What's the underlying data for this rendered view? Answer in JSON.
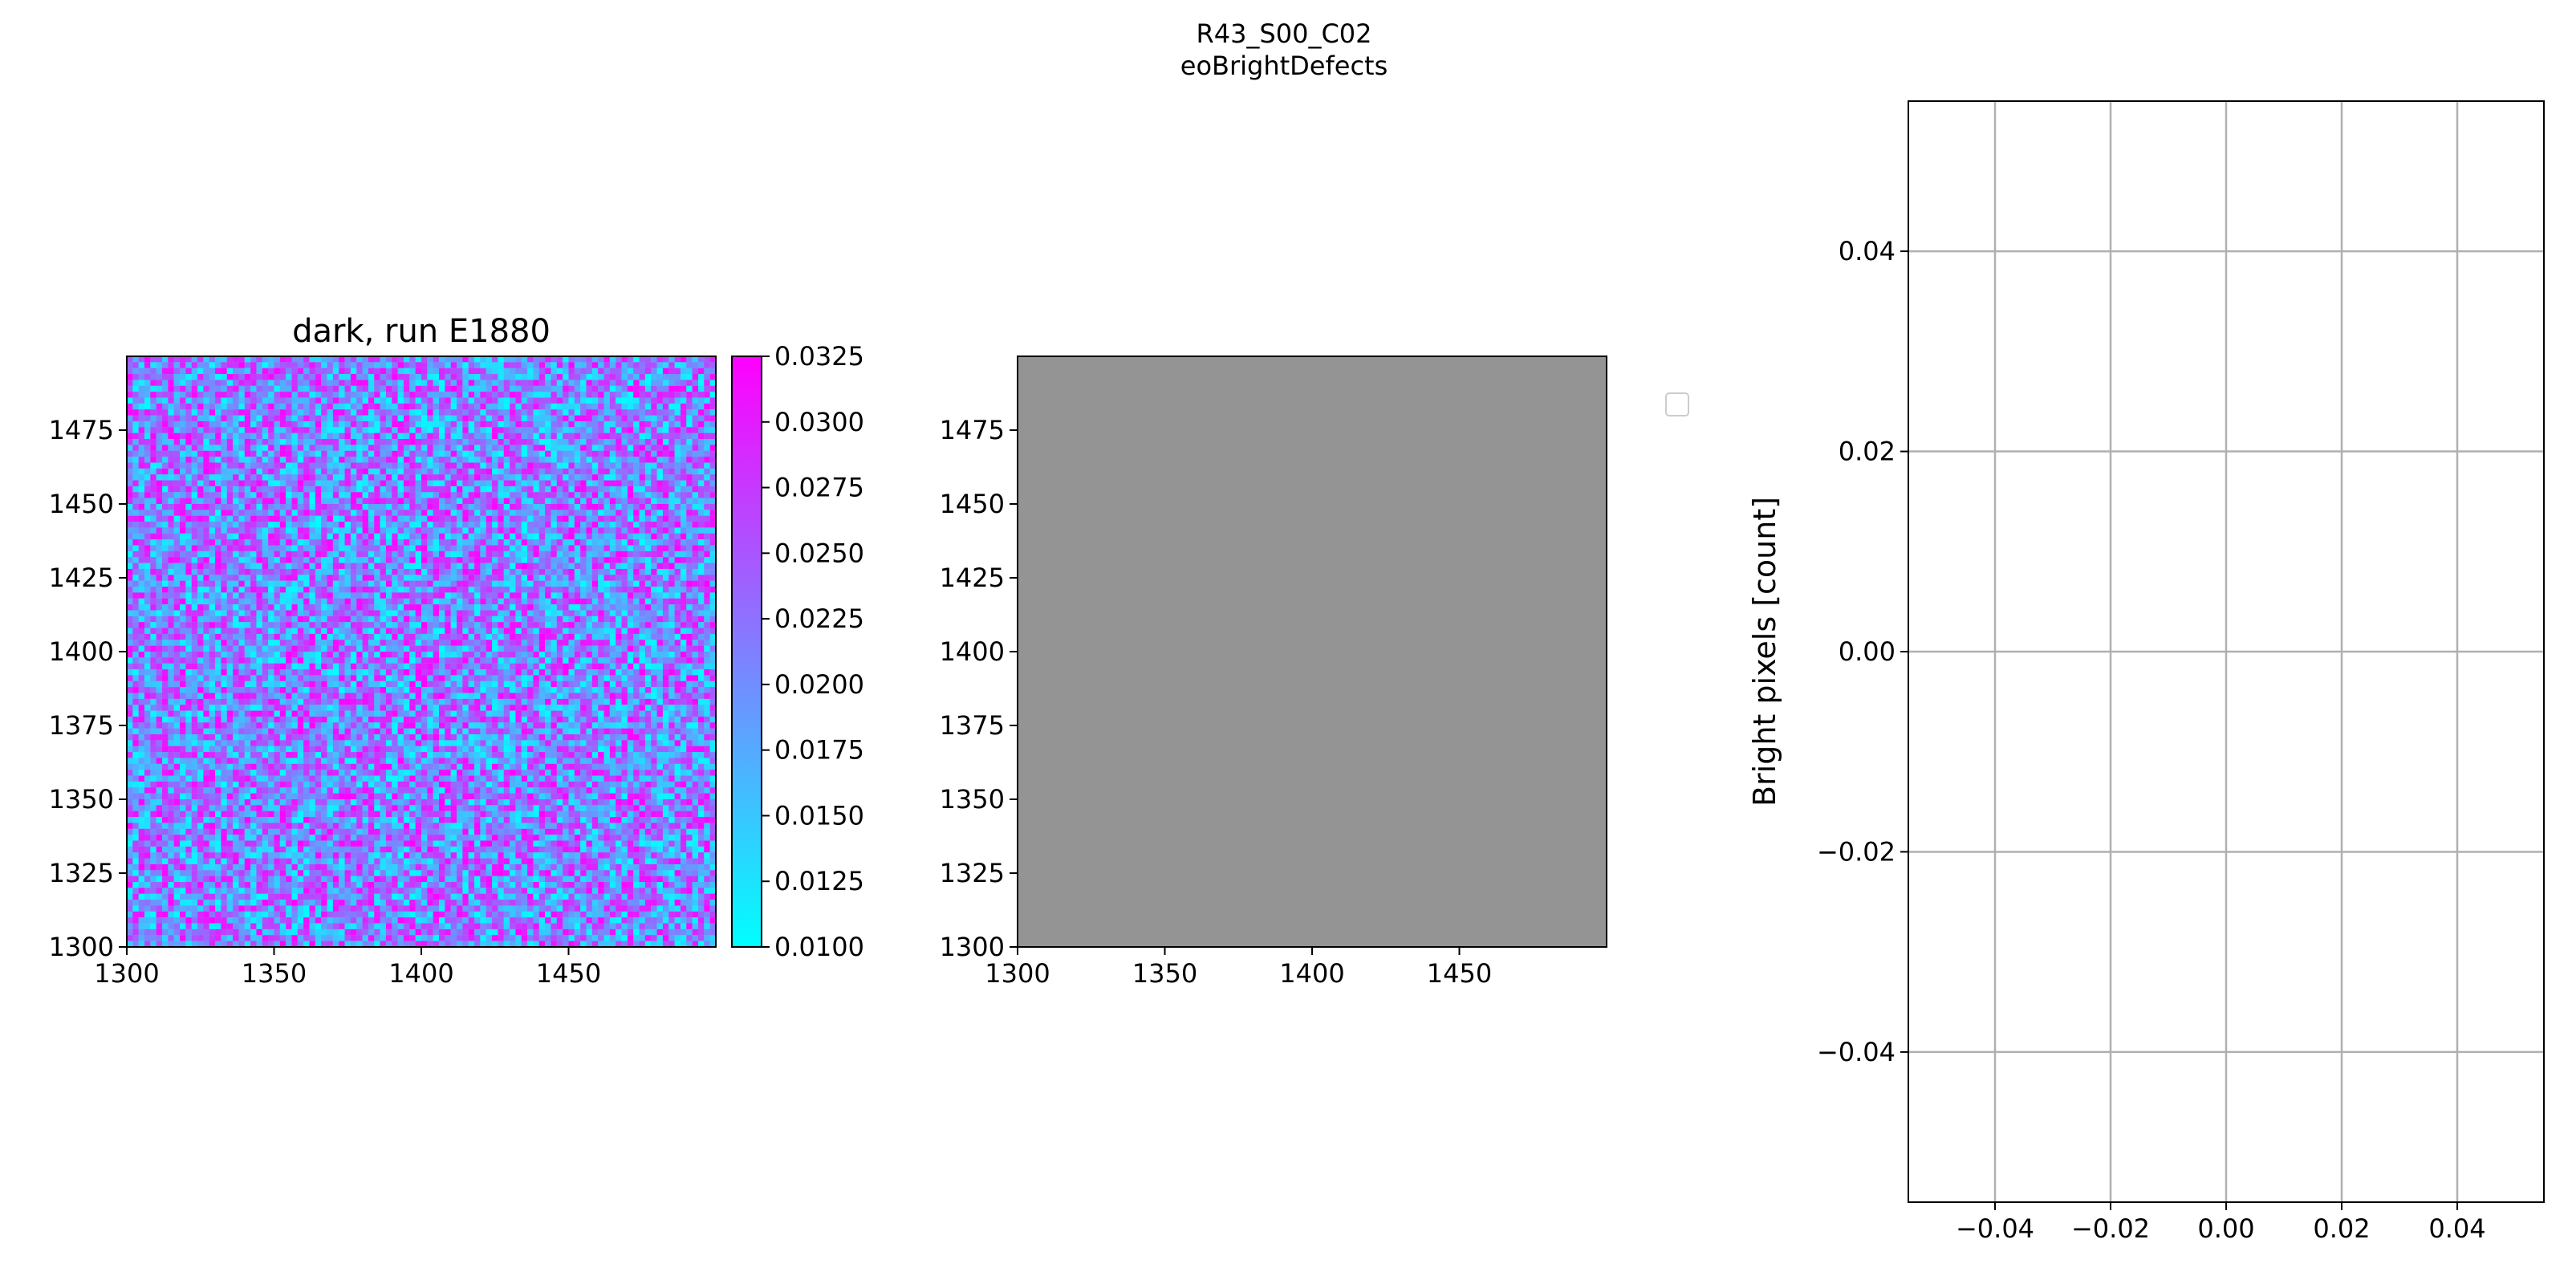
{
  "figure": {
    "suptitle_line1": "R43_S00_C02",
    "suptitle_line2": "eoBrightDefects"
  },
  "chart_data": [
    {
      "type": "heatmap",
      "title": "dark, run E1880",
      "xlim": [
        1300,
        1500
      ],
      "ylim": [
        1300,
        1500
      ],
      "xticks": [
        1300,
        1350,
        1400,
        1450
      ],
      "yticks": [
        1300,
        1325,
        1350,
        1375,
        1400,
        1425,
        1450,
        1475
      ],
      "grid": false,
      "colormap": "cool",
      "colorbar": {
        "range": [
          0.01,
          0.0325
        ],
        "ticks": [
          "0.0100",
          "0.0125",
          "0.0150",
          "0.0175",
          "0.0200",
          "0.0225",
          "0.0250",
          "0.0275",
          "0.0300",
          "0.0325"
        ],
        "color_low": "#00ffff",
        "color_high": "#ff00ff"
      },
      "values": "pixel-level noise, roughly uniform between 0.0100 and 0.0325"
    },
    {
      "type": "heatmap",
      "title": "",
      "xlim": [
        1300,
        1500
      ],
      "ylim": [
        1300,
        1500
      ],
      "xticks": [
        1300,
        1350,
        1400,
        1450
      ],
      "yticks": [
        1300,
        1325,
        1350,
        1375,
        1400,
        1425,
        1450,
        1475
      ],
      "grid": false,
      "fill_color": "#949494",
      "legend": "empty, top-right outside axes"
    },
    {
      "type": "scatter",
      "title": "",
      "xlabel": "",
      "ylabel": "Bright pixels [count]",
      "xlim": [
        -0.055,
        0.055
      ],
      "ylim": [
        -0.055,
        0.055
      ],
      "xticks": [
        "−0.04",
        "−0.02",
        "0.00",
        "0.02",
        "0.04"
      ],
      "yticks": [
        "−0.04",
        "−0.02",
        "0.00",
        "0.02",
        "0.04"
      ],
      "grid": true,
      "grid_color": "#b0b0b0",
      "series": []
    }
  ]
}
